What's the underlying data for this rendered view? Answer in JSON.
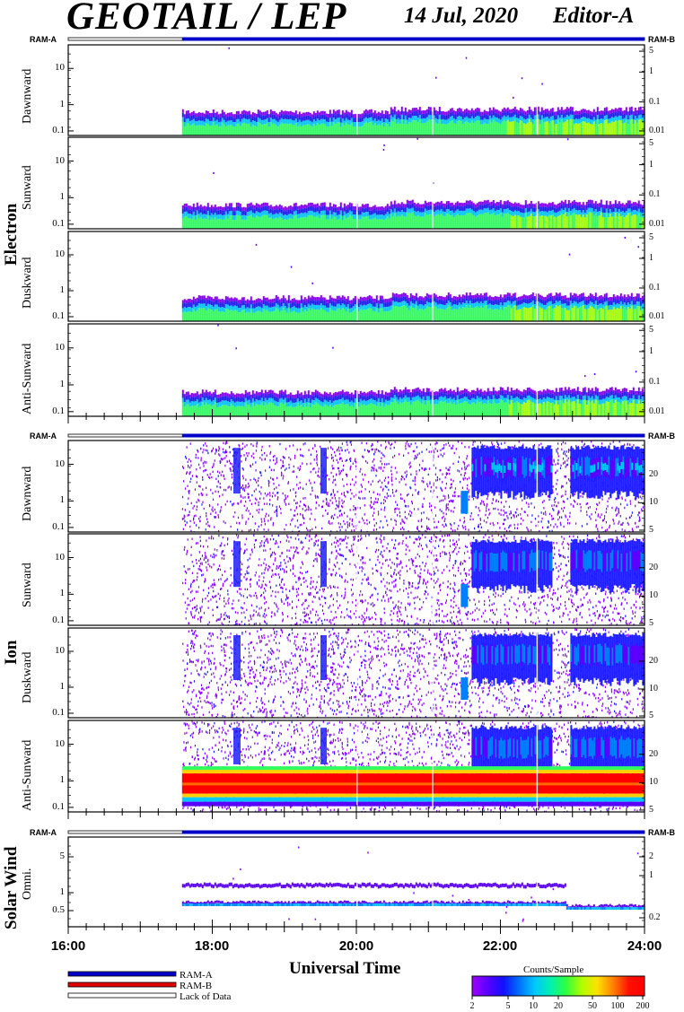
{
  "header": {
    "title": "GEOTAIL / LEP",
    "date": "14 Jul, 2020",
    "editor": "Editor-A"
  },
  "group_labels": {
    "electron": "Electron",
    "ion": "Ion",
    "solar_wind": "Solar Wind"
  },
  "ram_labels": {
    "a": "RAM-A",
    "b": "RAM-B"
  },
  "colors": {
    "ram_a": "#0000c8",
    "ram_b": "#e00000",
    "lack": "#ffffff"
  },
  "legend": {
    "ram_a": "RAM-A",
    "ram_b": "RAM-B",
    "lack": "Lack of Data"
  },
  "colorbar": {
    "title": "Counts/Sample",
    "ticks": [
      "2",
      "5",
      "10",
      "20",
      "50",
      "100",
      "200"
    ]
  },
  "chart_data": {
    "type": "heatmap",
    "xlabel": "Universal Time",
    "x_ticks": [
      "16:00",
      "18:00",
      "20:00",
      "22:00",
      "24:00"
    ],
    "xlim_hours": [
      16,
      24
    ],
    "data_start_hour": 17.58,
    "ram_b_start_hour": 17.58,
    "panels": [
      {
        "group": "electron",
        "label": "Dawnward",
        "left_ticks": [
          "10",
          "1",
          "0.1"
        ],
        "right_ticks": [
          "5",
          "1",
          "0.1",
          "0.01"
        ]
      },
      {
        "group": "electron",
        "label": "Sunward",
        "left_ticks": [
          "10",
          "1",
          "0.1"
        ],
        "right_ticks": [
          "5",
          "1",
          "0.1",
          "0.01"
        ]
      },
      {
        "group": "electron",
        "label": "Duskward",
        "left_ticks": [
          "10",
          "1",
          "0.1"
        ],
        "right_ticks": [
          "5",
          "1",
          "0.1",
          "0.01"
        ]
      },
      {
        "group": "electron",
        "label": "Anti-Sunward",
        "left_ticks": [
          "10",
          "1",
          "0.1"
        ],
        "right_ticks": [
          "5",
          "1",
          "0.1",
          "0.01"
        ]
      },
      {
        "group": "ion",
        "label": "Dawnward",
        "left_ticks": [
          "10",
          "1",
          "0.1"
        ],
        "right_ticks": [
          "20",
          "10",
          "5"
        ]
      },
      {
        "group": "ion",
        "label": "Sunward",
        "left_ticks": [
          "10",
          "1",
          "0.1"
        ],
        "right_ticks": [
          "20",
          "10",
          "5"
        ]
      },
      {
        "group": "ion",
        "label": "Duskward",
        "left_ticks": [
          "10",
          "1",
          "0.1"
        ],
        "right_ticks": [
          "20",
          "10",
          "5"
        ]
      },
      {
        "group": "ion",
        "label": "Anti-Sunward",
        "left_ticks": [
          "10",
          "1",
          "0.1"
        ],
        "right_ticks": [
          "20",
          "10",
          "5"
        ]
      },
      {
        "group": "solar_wind",
        "label": "Omni.",
        "left_ticks": [
          "5",
          "1",
          "0.5"
        ],
        "right_ticks": [
          "2",
          "1",
          "0.2"
        ]
      }
    ]
  }
}
